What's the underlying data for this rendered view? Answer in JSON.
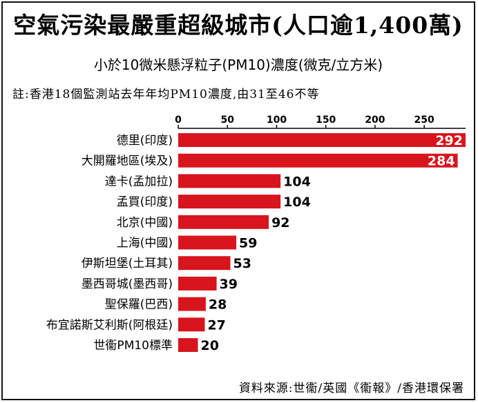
{
  "title": "空氣污染最嚴重超級城市(人口逾1,400萬)",
  "subtitle": "小於10微米懸浮粒子(PM10)濃度(微克/立方米)",
  "note": "註:香港18個監測站去年年均PM10濃度,由31至46不等",
  "source": "資料來源:世衞/英國《衞報》/香港環保署",
  "colors": {
    "bar": "#d8141c",
    "text": "#000000",
    "inside_label": "#ffffff"
  },
  "chart_data": {
    "type": "bar",
    "orientation": "horizontal",
    "categories": [
      "德里(印度)",
      "大開羅地區(埃及)",
      "達卡(孟加拉)",
      "孟買(印度)",
      "北京(中國)",
      "上海(中國)",
      "伊斯坦堡(土耳其)",
      "墨西哥城(墨西哥)",
      "聖保羅(巴西)",
      "布宜諾斯艾利斯(阿根廷)",
      "世衞PM10標準"
    ],
    "values": [
      292,
      284,
      104,
      104,
      92,
      59,
      53,
      39,
      28,
      27,
      20
    ],
    "xlim": [
      0,
      292
    ],
    "xticks": [
      0,
      50,
      100,
      150,
      200,
      250
    ],
    "grid": false,
    "legend": "none"
  }
}
